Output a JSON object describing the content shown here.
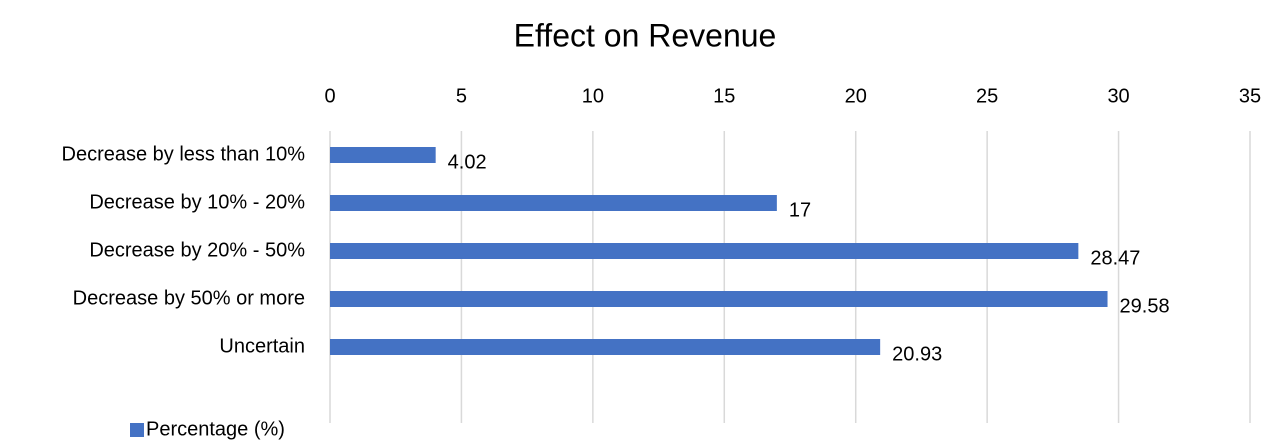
{
  "chart_data": {
    "type": "barh",
    "title": "Effect on Revenue",
    "categories": [
      "Decrease by less than 10%",
      "Decrease by 10% - 20%",
      "Decrease by 20% - 50%",
      "Decrease by 50% or more",
      "Uncertain"
    ],
    "series": [
      {
        "name": "Percentage (%)",
        "color": "#4472c4",
        "values": [
          4.02,
          17,
          28.47,
          29.58,
          20.93
        ]
      }
    ],
    "xlim": [
      0,
      35
    ],
    "xticks": [
      0,
      5,
      10,
      15,
      20,
      25,
      30,
      35
    ],
    "grid": true,
    "legend": "bottom-left"
  }
}
